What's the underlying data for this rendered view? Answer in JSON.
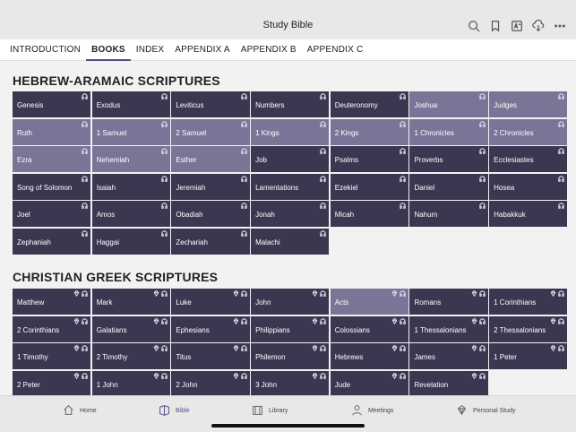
{
  "app": {
    "title": "Study Bible"
  },
  "tabs": [
    "INTRODUCTION",
    "BOOKS",
    "INDEX",
    "APPENDIX A",
    "APPENDIX B",
    "APPENDIX C"
  ],
  "active_tab": "BOOKS",
  "hebrew": {
    "title": "HEBREW-ARAMAIC SCRIPTURES",
    "books": [
      {
        "name": "Genesis",
        "shade": "dark"
      },
      {
        "name": "Exodus",
        "shade": "dark"
      },
      {
        "name": "Leviticus",
        "shade": "dark"
      },
      {
        "name": "Numbers",
        "shade": "dark"
      },
      {
        "name": "Deuteronomy",
        "shade": "dark"
      },
      {
        "name": "Joshua",
        "shade": "light"
      },
      {
        "name": "Judges",
        "shade": "light"
      },
      {
        "name": "Ruth",
        "shade": "light"
      },
      {
        "name": "1 Samuel",
        "shade": "light"
      },
      {
        "name": "2 Samuel",
        "shade": "light"
      },
      {
        "name": "1 Kings",
        "shade": "light"
      },
      {
        "name": "2 Kings",
        "shade": "light"
      },
      {
        "name": "1 Chronicles",
        "shade": "light"
      },
      {
        "name": "2 Chronicles",
        "shade": "light"
      },
      {
        "name": "Ezra",
        "shade": "light"
      },
      {
        "name": "Nehemiah",
        "shade": "light"
      },
      {
        "name": "Esther",
        "shade": "light"
      },
      {
        "name": "Job",
        "shade": "dark"
      },
      {
        "name": "Psalms",
        "shade": "dark"
      },
      {
        "name": "Proverbs",
        "shade": "dark"
      },
      {
        "name": "Ecclesiastes",
        "shade": "dark"
      },
      {
        "name": "Song of Solomon",
        "shade": "dark"
      },
      {
        "name": "Isaiah",
        "shade": "dark"
      },
      {
        "name": "Jeremiah",
        "shade": "dark"
      },
      {
        "name": "Lamentations",
        "shade": "dark"
      },
      {
        "name": "Ezekiel",
        "shade": "dark"
      },
      {
        "name": "Daniel",
        "shade": "dark"
      },
      {
        "name": "Hosea",
        "shade": "dark"
      },
      {
        "name": "Joel",
        "shade": "dark"
      },
      {
        "name": "Amos",
        "shade": "dark"
      },
      {
        "name": "Obadiah",
        "shade": "dark"
      },
      {
        "name": "Jonah",
        "shade": "dark"
      },
      {
        "name": "Micah",
        "shade": "dark"
      },
      {
        "name": "Nahum",
        "shade": "dark"
      },
      {
        "name": "Habakkuk",
        "shade": "dark"
      },
      {
        "name": "Zephaniah",
        "shade": "dark"
      },
      {
        "name": "Haggai",
        "shade": "dark"
      },
      {
        "name": "Zechariah",
        "shade": "dark"
      },
      {
        "name": "Malachi",
        "shade": "dark"
      }
    ]
  },
  "greek": {
    "title": "CHRISTIAN GREEK SCRIPTURES",
    "books": [
      {
        "name": "Matthew",
        "shade": "dark",
        "study": true
      },
      {
        "name": "Mark",
        "shade": "dark",
        "study": true
      },
      {
        "name": "Luke",
        "shade": "dark",
        "study": true
      },
      {
        "name": "John",
        "shade": "dark",
        "study": true
      },
      {
        "name": "Acts",
        "shade": "light",
        "study": true
      },
      {
        "name": "Romans",
        "shade": "dark",
        "study": true
      },
      {
        "name": "1 Corinthians",
        "shade": "dark",
        "study": true
      },
      {
        "name": "2 Corinthians",
        "shade": "dark",
        "study": true
      },
      {
        "name": "Galatians",
        "shade": "dark",
        "study": true
      },
      {
        "name": "Ephesians",
        "shade": "dark",
        "study": true
      },
      {
        "name": "Philippians",
        "shade": "dark",
        "study": true
      },
      {
        "name": "Colossians",
        "shade": "dark",
        "study": true
      },
      {
        "name": "1 Thessalonians",
        "shade": "dark",
        "study": true
      },
      {
        "name": "2 Thessalonians",
        "shade": "dark",
        "study": true
      },
      {
        "name": "1 Timothy",
        "shade": "dark",
        "study": true
      },
      {
        "name": "2 Timothy",
        "shade": "dark",
        "study": true
      },
      {
        "name": "Titus",
        "shade": "dark",
        "study": true
      },
      {
        "name": "Philemon",
        "shade": "dark",
        "study": true
      },
      {
        "name": "Hebrews",
        "shade": "dark",
        "study": true
      },
      {
        "name": "James",
        "shade": "dark",
        "study": true
      },
      {
        "name": "1 Peter",
        "shade": "dark",
        "study": true
      },
      {
        "name": "2 Peter",
        "shade": "dark",
        "study": true
      },
      {
        "name": "1 John",
        "shade": "dark",
        "study": true
      },
      {
        "name": "2 John",
        "shade": "dark",
        "study": true
      },
      {
        "name": "3 John",
        "shade": "dark",
        "study": true
      },
      {
        "name": "Jude",
        "shade": "dark",
        "study": true
      },
      {
        "name": "Revelation",
        "shade": "dark",
        "study": true
      }
    ]
  },
  "bottom_nav": [
    {
      "label": "Home",
      "icon": "home-icon",
      "active": false
    },
    {
      "label": "Bible",
      "icon": "bible-icon",
      "active": true
    },
    {
      "label": "Library",
      "icon": "library-icon",
      "active": false
    },
    {
      "label": "Meetings",
      "icon": "meetings-icon",
      "active": false
    },
    {
      "label": "Personal Study",
      "icon": "personal-study-icon",
      "active": false
    }
  ],
  "colors": {
    "dark_tile": "#3c3650",
    "light_tile": "#7c7497",
    "accent": "#5a4a8a"
  }
}
